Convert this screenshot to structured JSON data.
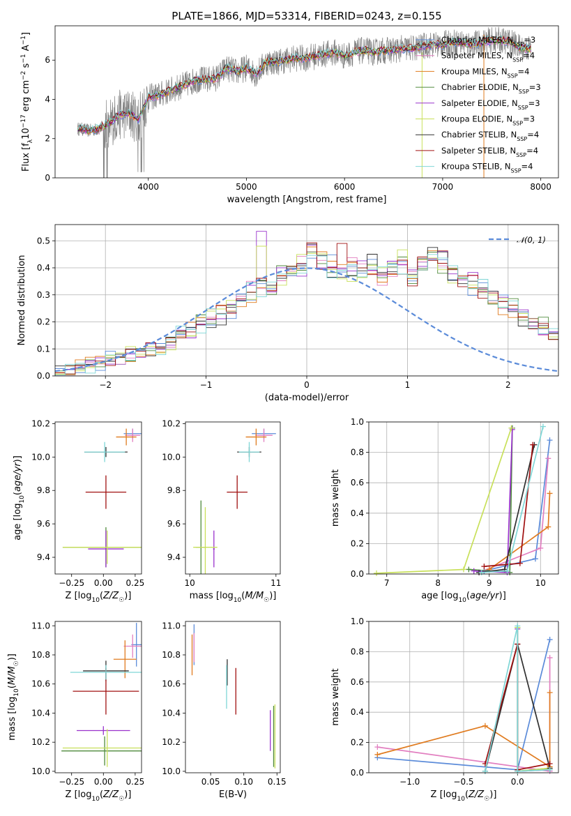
{
  "figure_title": "PLATE=1866, MJD=53314, FIBERID=0243, z=0.155",
  "models": [
    {
      "name": "Chabrier MILES, N_SSP=3",
      "label_main": "Chabrier MILES, N",
      "label_sub": "SSP",
      "label_tail": "=3",
      "color": "#5b8bd9"
    },
    {
      "name": "Salpeter MILES, N_SSP=4",
      "label_main": "Salpeter MILES, N",
      "label_sub": "SSP",
      "label_tail": "=4",
      "color": "#e27fc0"
    },
    {
      "name": "Kroupa MILES, N_SSP=4",
      "label_main": "Kroupa MILES, N",
      "label_sub": "SSP",
      "label_tail": "=4",
      "color": "#e07b1f"
    },
    {
      "name": "Chabrier ELODIE, N_SSP=3",
      "label_main": "Chabrier ELODIE, N",
      "label_sub": "SSP",
      "label_tail": "=3",
      "color": "#4f8a3c"
    },
    {
      "name": "Salpeter ELODIE, N_SSP=3",
      "label_main": "Salpeter ELODIE, N",
      "label_sub": "SSP",
      "label_tail": "=3",
      "color": "#9932cc"
    },
    {
      "name": "Kroupa ELODIE, N_SSP=3",
      "label_main": "Kroupa ELODIE, N",
      "label_sub": "SSP",
      "label_tail": "=3",
      "color": "#c8e05a"
    },
    {
      "name": "Chabrier STELIB, N_SSP=4",
      "label_main": "Chabrier STELIB, N",
      "label_sub": "SSP",
      "label_tail": "=4",
      "color": "#303030"
    },
    {
      "name": "Salpeter STELIB, N_SSP=4",
      "label_main": "Salpeter STELIB, N",
      "label_sub": "SSP",
      "label_tail": "=4",
      "color": "#a01010"
    },
    {
      "name": "Kroupa STELIB, N_SSP=4",
      "label_main": "Kroupa STELIB, N",
      "label_sub": "SSP",
      "label_tail": "=4",
      "color": "#7fd6d6"
    }
  ],
  "chart_data": [
    {
      "id": "spectrum",
      "type": "line",
      "xlabel": "wavelength [Angstrom, rest frame]",
      "ylabel": "Flux [f_λ 10^-17 erg cm^-2 s^-1 A^-1]",
      "xlim": [
        3050,
        8180
      ],
      "ylim": [
        0,
        7.75
      ],
      "xticks": [
        4000,
        5000,
        6000,
        7000,
        8000
      ],
      "yticks": [
        0,
        2,
        4,
        6
      ],
      "grid": false,
      "legend": "top-right",
      "continuum_x": [
        3300,
        3400,
        3500,
        3600,
        3700,
        3800,
        3900,
        4000,
        4100,
        4200,
        4300,
        4400,
        4500,
        4600,
        4700,
        4800,
        4900,
        5000,
        5100,
        5200,
        5300,
        5400,
        5500,
        5600,
        5700,
        5800,
        5900,
        6000,
        6100,
        6200,
        6300,
        6400,
        6500,
        6600,
        6700,
        6800,
        6900,
        7000,
        7100,
        7200,
        7300,
        7400,
        7500,
        7600,
        7700,
        7800,
        7900
      ],
      "continuum_y": [
        2.5,
        2.4,
        2.5,
        2.8,
        3.2,
        3.3,
        3.0,
        4.1,
        4.2,
        4.4,
        4.6,
        4.8,
        5.0,
        5.0,
        5.1,
        5.6,
        5.4,
        5.6,
        5.3,
        5.9,
        5.9,
        6.0,
        6.1,
        6.1,
        6.2,
        6.3,
        6.4,
        6.2,
        6.4,
        6.5,
        6.4,
        6.5,
        6.5,
        6.6,
        6.6,
        6.7,
        6.8,
        6.8,
        6.9,
        6.9,
        6.8,
        6.9,
        7.0,
        7.0,
        6.9,
        6.6,
        6.6
      ]
    },
    {
      "id": "residuals",
      "type": "histogram",
      "xlabel": "(data-model)/error",
      "ylabel": "Normed distribution",
      "xlim": [
        -2.5,
        2.5
      ],
      "ylim": [
        0,
        0.56
      ],
      "xticks": [
        -2,
        -1,
        0,
        1,
        2
      ],
      "yticks": [
        0.0,
        0.1,
        0.2,
        0.3,
        0.4,
        0.5
      ],
      "grid": true,
      "legend": "top-right",
      "reference_curve": "𝒩(0, 1)",
      "bin_width": 0.1,
      "bins_start": -2.5,
      "envelope": [
        0.02,
        0.02,
        0.03,
        0.04,
        0.05,
        0.06,
        0.07,
        0.08,
        0.09,
        0.1,
        0.11,
        0.13,
        0.15,
        0.17,
        0.19,
        0.21,
        0.23,
        0.25,
        0.28,
        0.31,
        0.33,
        0.35,
        0.37,
        0.39,
        0.41,
        0.44,
        0.43,
        0.4,
        0.39,
        0.39,
        0.39,
        0.4,
        0.38,
        0.41,
        0.42,
        0.37,
        0.4,
        0.45,
        0.42,
        0.38,
        0.36,
        0.34,
        0.32,
        0.29,
        0.27,
        0.25,
        0.22,
        0.2,
        0.18,
        0.15
      ]
    },
    {
      "id": "z-age",
      "type": "scatter",
      "xlabel": "Z [log10(Z/Z☉)]",
      "ylabel": "age [log10(age/yr)]",
      "xlim": [
        -0.38,
        0.3
      ],
      "ylim": [
        9.3,
        10.21
      ],
      "xticks": [
        -0.25,
        0.0,
        0.25
      ],
      "yticks": [
        9.4,
        9.6,
        9.8,
        10.0,
        10.2
      ],
      "points": [
        {
          "model": 0,
          "x": 0.23,
          "y": 10.14,
          "xerr": 0.07,
          "yerr": 0.03
        },
        {
          "model": 1,
          "x": 0.23,
          "y": 10.13,
          "xerr": 0.06,
          "yerr": 0.04
        },
        {
          "model": 2,
          "x": 0.18,
          "y": 10.12,
          "xerr": 0.08,
          "yerr": 0.05
        },
        {
          "model": 3,
          "x": 0.02,
          "y": 9.46,
          "xerr": 0.34,
          "yerr": 0.12
        },
        {
          "model": 4,
          "x": 0.02,
          "y": 9.45,
          "xerr": 0.14,
          "yerr": 0.11
        },
        {
          "model": 5,
          "x": 0.03,
          "y": 9.46,
          "xerr": 0.35,
          "yerr": 0.1
        },
        {
          "model": 6,
          "x": 0.02,
          "y": 10.03,
          "xerr": 0.17,
          "yerr": 0.03
        },
        {
          "model": 7,
          "x": 0.02,
          "y": 9.79,
          "xerr": 0.16,
          "yerr": 0.1
        },
        {
          "model": 8,
          "x": 0.01,
          "y": 10.03,
          "xerr": 0.16,
          "yerr": 0.06
        }
      ]
    },
    {
      "id": "mass-age",
      "type": "scatter",
      "xlabel": "mass [log10(M/M☉)]",
      "ylabel": "",
      "xlim": [
        9.95,
        11.05
      ],
      "ylim": [
        9.3,
        10.21
      ],
      "xticks": [
        10,
        11
      ],
      "yticks": [
        9.4,
        9.6,
        9.8,
        10.0,
        10.2
      ],
      "points": [
        {
          "model": 0,
          "x": 10.86,
          "y": 10.14,
          "xerr": 0.14,
          "yerr": 0.03
        },
        {
          "model": 1,
          "x": 10.86,
          "y": 10.13,
          "xerr": 0.1,
          "yerr": 0.04
        },
        {
          "model": 2,
          "x": 10.77,
          "y": 10.12,
          "xerr": 0.12,
          "yerr": 0.05
        },
        {
          "model": 3,
          "x": 10.13,
          "y": 9.46,
          "xerr": 0.06,
          "yerr": 0.28
        },
        {
          "model": 4,
          "x": 10.28,
          "y": 9.45,
          "xerr": 0.01,
          "yerr": 0.11
        },
        {
          "model": 5,
          "x": 10.18,
          "y": 9.46,
          "xerr": 0.14,
          "yerr": 0.24
        },
        {
          "model": 6,
          "x": 10.69,
          "y": 10.03,
          "xerr": 0.14,
          "yerr": 0.03
        },
        {
          "model": 7,
          "x": 10.55,
          "y": 9.79,
          "xerr": 0.12,
          "yerr": 0.1
        },
        {
          "model": 8,
          "x": 10.69,
          "y": 10.03,
          "xerr": 0.12,
          "yerr": 0.06
        }
      ]
    },
    {
      "id": "age-weight",
      "type": "line",
      "xlabel": "age [log10(age/yr)]",
      "ylabel": "mass weight",
      "xlim": [
        6.65,
        10.35
      ],
      "ylim": [
        0,
        1.0
      ],
      "xticks": [
        7,
        8,
        9,
        10
      ],
      "yticks": [
        0.0,
        0.2,
        0.4,
        0.6,
        0.8,
        1.0
      ],
      "series": [
        {
          "model": 0,
          "x": [
            8.9,
            9.9,
            10.18
          ],
          "y": [
            0.02,
            0.1,
            0.88
          ]
        },
        {
          "model": 1,
          "x": [
            8.8,
            10.0,
            10.15
          ],
          "y": [
            0.01,
            0.17,
            0.76
          ]
        },
        {
          "model": 2,
          "x": [
            9.0,
            10.15,
            10.18
          ],
          "y": [
            0.03,
            0.31,
            0.53
          ]
        },
        {
          "model": 3,
          "x": [
            8.6,
            9.4,
            9.45
          ],
          "y": [
            0.03,
            0.01,
            0.96
          ]
        },
        {
          "model": 4,
          "x": [
            8.7,
            9.35,
            9.45
          ],
          "y": [
            0.02,
            0.01,
            0.95
          ]
        },
        {
          "model": 5,
          "x": [
            6.8,
            8.5,
            9.43
          ],
          "y": [
            0.005,
            0.03,
            0.96
          ]
        },
        {
          "model": 6,
          "x": [
            8.8,
            9.3,
            9.88
          ],
          "y": [
            0.01,
            0.03,
            0.85
          ]
        },
        {
          "model": 7,
          "x": [
            8.9,
            9.6,
            9.85
          ],
          "y": [
            0.05,
            0.07,
            0.85
          ]
        },
        {
          "model": 8,
          "x": [
            8.85,
            9.35,
            10.05
          ],
          "y": [
            0.01,
            0.02,
            0.97
          ]
        }
      ]
    },
    {
      "id": "z-mass",
      "type": "scatter",
      "xlabel": "Z [log10(Z/Z☉)]",
      "ylabel": "mass [log10(M/M☉)]",
      "xlim": [
        -0.38,
        0.3
      ],
      "ylim": [
        9.99,
        11.03
      ],
      "xticks": [
        -0.25,
        0.0,
        0.25
      ],
      "yticks": [
        10.0,
        10.2,
        10.4,
        10.6,
        10.8,
        11.0
      ],
      "points": [
        {
          "model": 0,
          "x": 0.26,
          "y": 10.87,
          "xerr": 0.04,
          "yerr": 0.15
        },
        {
          "model": 1,
          "x": 0.23,
          "y": 10.86,
          "xerr": 0.07,
          "yerr": 0.08
        },
        {
          "model": 2,
          "x": 0.17,
          "y": 10.77,
          "xerr": 0.09,
          "yerr": 0.13
        },
        {
          "model": 3,
          "x": 0.01,
          "y": 10.14,
          "xerr": 0.34,
          "yerr": 0.1
        },
        {
          "model": 4,
          "x": 0.0,
          "y": 10.28,
          "xerr": 0.21,
          "yerr": 0.03
        },
        {
          "model": 5,
          "x": 0.03,
          "y": 10.16,
          "xerr": 0.35,
          "yerr": 0.13
        },
        {
          "model": 6,
          "x": 0.02,
          "y": 10.69,
          "xerr": 0.18,
          "yerr": 0.07
        },
        {
          "model": 7,
          "x": 0.02,
          "y": 10.55,
          "xerr": 0.26,
          "yerr": 0.16
        },
        {
          "model": 8,
          "x": 0.02,
          "y": 10.68,
          "xerr": 0.28,
          "yerr": 0.05
        }
      ]
    },
    {
      "id": "ebv-mass",
      "type": "scatter",
      "xlabel": "E(B-V)",
      "ylabel": "",
      "xlim": [
        0.012,
        0.155
      ],
      "ylim": [
        9.99,
        11.03
      ],
      "xticks": [
        0.05,
        0.1,
        0.15
      ],
      "yticks": [
        10.0,
        10.2,
        10.4,
        10.6,
        10.8,
        11.0
      ],
      "points": [
        {
          "model": 0,
          "x": 0.025,
          "y": 10.87,
          "xerr": 0,
          "yerr": 0.14
        },
        {
          "model": 1,
          "x": 0.025,
          "y": 10.85,
          "xerr": 0,
          "yerr": 0.1
        },
        {
          "model": 2,
          "x": 0.022,
          "y": 10.8,
          "xerr": 0,
          "yerr": 0.14
        },
        {
          "model": 3,
          "x": 0.145,
          "y": 10.24,
          "xerr": 0,
          "yerr": 0.21
        },
        {
          "model": 4,
          "x": 0.14,
          "y": 10.28,
          "xerr": 0,
          "yerr": 0.14
        },
        {
          "model": 5,
          "x": 0.147,
          "y": 10.24,
          "xerr": 0,
          "yerr": 0.22
        },
        {
          "model": 6,
          "x": 0.075,
          "y": 10.68,
          "xerr": 0,
          "yerr": 0.09
        },
        {
          "model": 7,
          "x": 0.088,
          "y": 10.55,
          "xerr": 0,
          "yerr": 0.16
        },
        {
          "model": 8,
          "x": 0.074,
          "y": 10.58,
          "xerr": 0,
          "yerr": 0.15
        }
      ]
    },
    {
      "id": "z-weight",
      "type": "line",
      "xlabel": "Z [log10(Z/Z☉)]",
      "ylabel": "mass weight",
      "xlim": [
        -1.38,
        0.38
      ],
      "ylim": [
        0,
        1.0
      ],
      "xticks": [
        -1.0,
        -0.5,
        0.0
      ],
      "yticks": [
        0.0,
        0.2,
        0.4,
        0.6,
        0.8,
        1.0
      ],
      "series": [
        {
          "model": 0,
          "x": [
            -1.3,
            0.0,
            0.3
          ],
          "y": [
            0.1,
            0.02,
            0.88
          ]
        },
        {
          "model": 1,
          "x": [
            -1.3,
            0.3,
            0.3
          ],
          "y": [
            0.17,
            0.01,
            0.76
          ]
        },
        {
          "model": 2,
          "x": [
            -1.3,
            -0.3,
            0.3,
            0.3
          ],
          "y": [
            0.12,
            0.31,
            0.04,
            0.53
          ]
        },
        {
          "model": 3,
          "x": [
            0.0,
            0.0,
            0.3
          ],
          "y": [
            0.96,
            0.01,
            0.03
          ]
        },
        {
          "model": 4,
          "x": [
            0.0,
            0.0,
            0.3
          ],
          "y": [
            0.95,
            0.01,
            0.02
          ]
        },
        {
          "model": 5,
          "x": [
            0.0,
            0.0,
            0.3
          ],
          "y": [
            0.96,
            0.01,
            0.03
          ]
        },
        {
          "model": 6,
          "x": [
            -0.3,
            0.0,
            0.3
          ],
          "y": [
            0.01,
            0.85,
            0.03
          ]
        },
        {
          "model": 7,
          "x": [
            -0.3,
            0.0,
            0.0,
            0.3
          ],
          "y": [
            0.06,
            0.85,
            0.02,
            0.06
          ]
        },
        {
          "model": 8,
          "x": [
            -0.3,
            0.0,
            0.0,
            0.3
          ],
          "y": [
            0.01,
            0.97,
            0.01,
            0.02
          ]
        }
      ]
    }
  ]
}
